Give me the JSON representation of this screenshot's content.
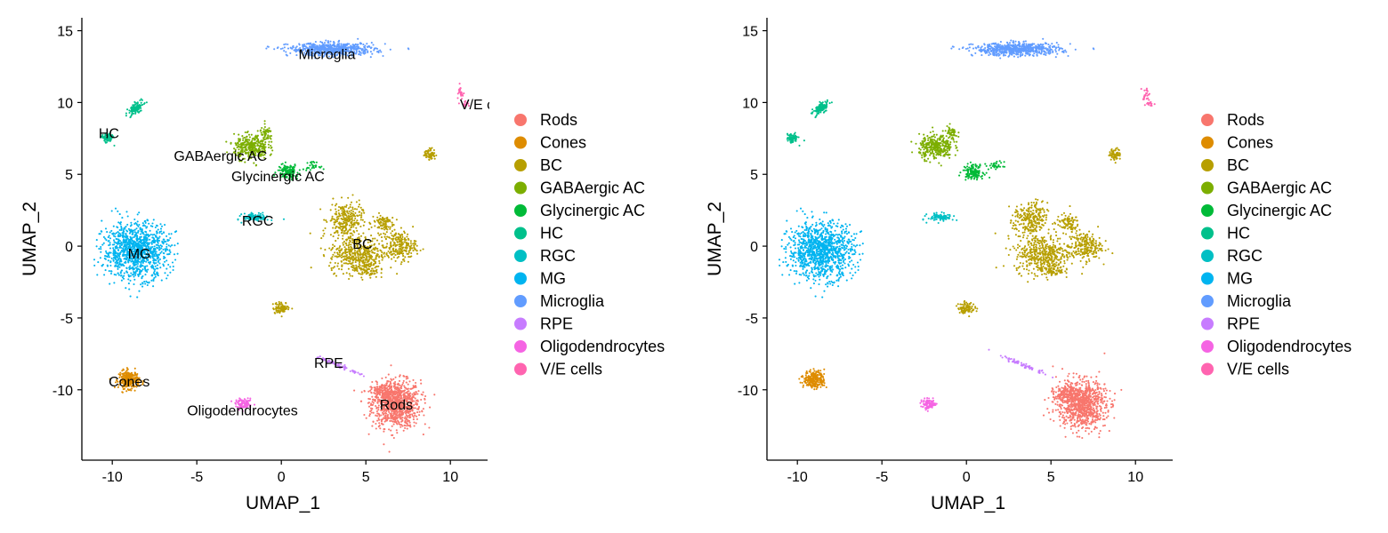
{
  "chart_data": [
    {
      "type": "scatter",
      "xlabel": "UMAP_1",
      "ylabel": "UMAP_2",
      "xlim": [
        -11.8,
        12.2
      ],
      "ylim": [
        -14.9,
        15.9
      ],
      "xticks": [
        -10,
        -5,
        0,
        5,
        10
      ],
      "yticks": [
        -10,
        -5,
        0,
        5,
        10,
        15
      ],
      "show_cluster_labels": true,
      "legend_position": "right",
      "grid": false
    },
    {
      "type": "scatter",
      "xlabel": "UMAP_1",
      "ylabel": "UMAP_2",
      "xlim": [
        -11.8,
        12.2
      ],
      "ylim": [
        -14.9,
        15.9
      ],
      "xticks": [
        -10,
        -5,
        0,
        5,
        10
      ],
      "yticks": [
        -10,
        -5,
        0,
        5,
        10,
        15
      ],
      "show_cluster_labels": false,
      "legend_position": "right",
      "grid": false
    }
  ],
  "clusters": [
    {
      "name": "Rods",
      "color": "#F8766D",
      "label_at": [
        6.8,
        -11.0
      ]
    },
    {
      "name": "Cones",
      "color": "#DE8C00",
      "label_at": [
        -9.0,
        -9.4
      ]
    },
    {
      "name": "BC",
      "color": "#B79F00",
      "label_at": [
        4.8,
        0.2
      ]
    },
    {
      "name": "GABAergic AC",
      "color": "#7CAE00",
      "label_at": [
        -3.6,
        6.3
      ]
    },
    {
      "name": "Glycinergic AC",
      "color": "#00BA38",
      "label_at": [
        -0.2,
        4.9
      ]
    },
    {
      "name": "HC",
      "color": "#00C08B",
      "label_at": [
        -10.2,
        7.9
      ]
    },
    {
      "name": "RGC",
      "color": "#00BFC4",
      "label_at": [
        -1.4,
        1.8
      ]
    },
    {
      "name": "MG",
      "color": "#00B4F0",
      "label_at": [
        -8.4,
        -0.5
      ]
    },
    {
      "name": "Microglia",
      "color": "#619CFF",
      "label_at": [
        2.7,
        13.4
      ]
    },
    {
      "name": "RPE",
      "color": "#C77CFF",
      "label_at": [
        2.8,
        -8.1
      ]
    },
    {
      "name": "Oligodendrocytes",
      "color": "#F564E3",
      "label_at": [
        -2.3,
        -11.4
      ]
    },
    {
      "name": "V/E cells",
      "color": "#FF64B0",
      "label_at": [
        12.2,
        9.9
      ]
    }
  ]
}
